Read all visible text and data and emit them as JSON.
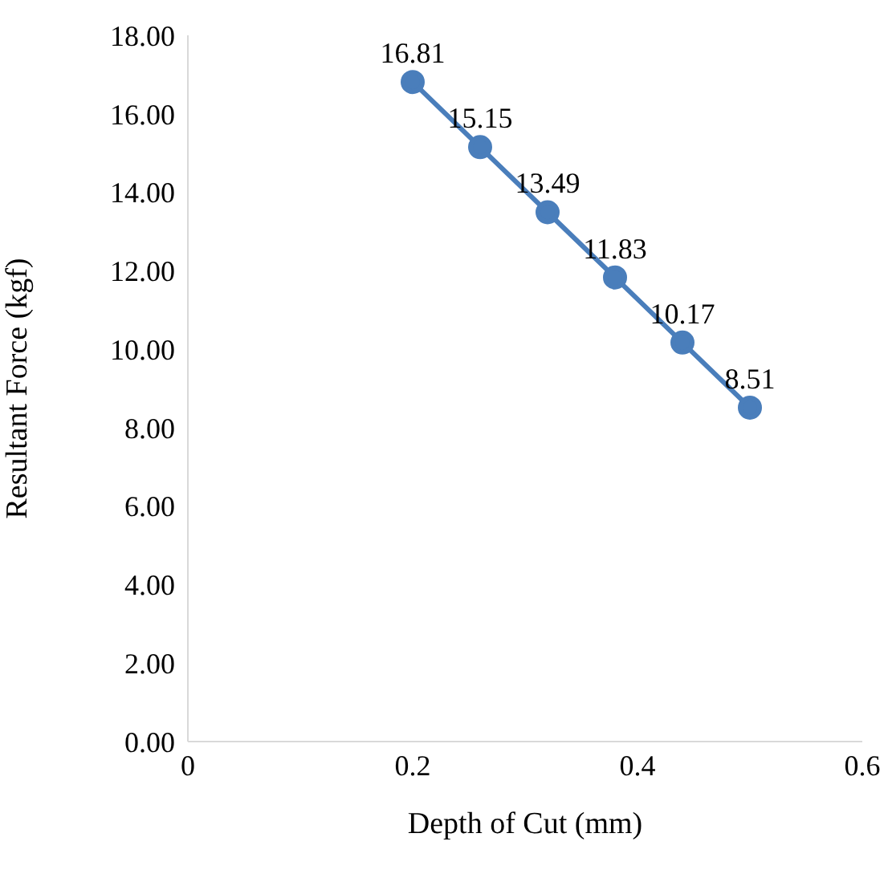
{
  "chart_data": {
    "type": "line",
    "xlabel": "Depth of Cut (mm)",
    "ylabel": "Resultant Force (kgf)",
    "x": [
      0.2,
      0.26,
      0.32,
      0.38,
      0.44,
      0.5
    ],
    "series": [
      {
        "color": "#4a7ebb",
        "values": [
          16.81,
          15.15,
          13.49,
          11.83,
          10.17,
          8.51
        ]
      }
    ],
    "xlim": [
      0,
      0.6
    ],
    "xticks": [
      0,
      0.2,
      0.4,
      0.6
    ],
    "ylim": [
      0,
      18
    ],
    "yticks": [
      {
        "value": 0,
        "label": "0.00"
      },
      {
        "value": 2,
        "label": "2.00"
      },
      {
        "value": 4,
        "label": "4.00"
      },
      {
        "value": 6,
        "label": "6.00"
      },
      {
        "value": 8,
        "label": "8.00"
      },
      {
        "value": 10,
        "label": "10.00"
      },
      {
        "value": 12,
        "label": "12.00"
      },
      {
        "value": 14,
        "label": "14.00"
      },
      {
        "value": 16,
        "label": "16.00"
      },
      {
        "value": 18,
        "label": "18.00"
      }
    ],
    "grid": false,
    "marker": "circle",
    "line_style": "solid",
    "data_labels": true
  }
}
